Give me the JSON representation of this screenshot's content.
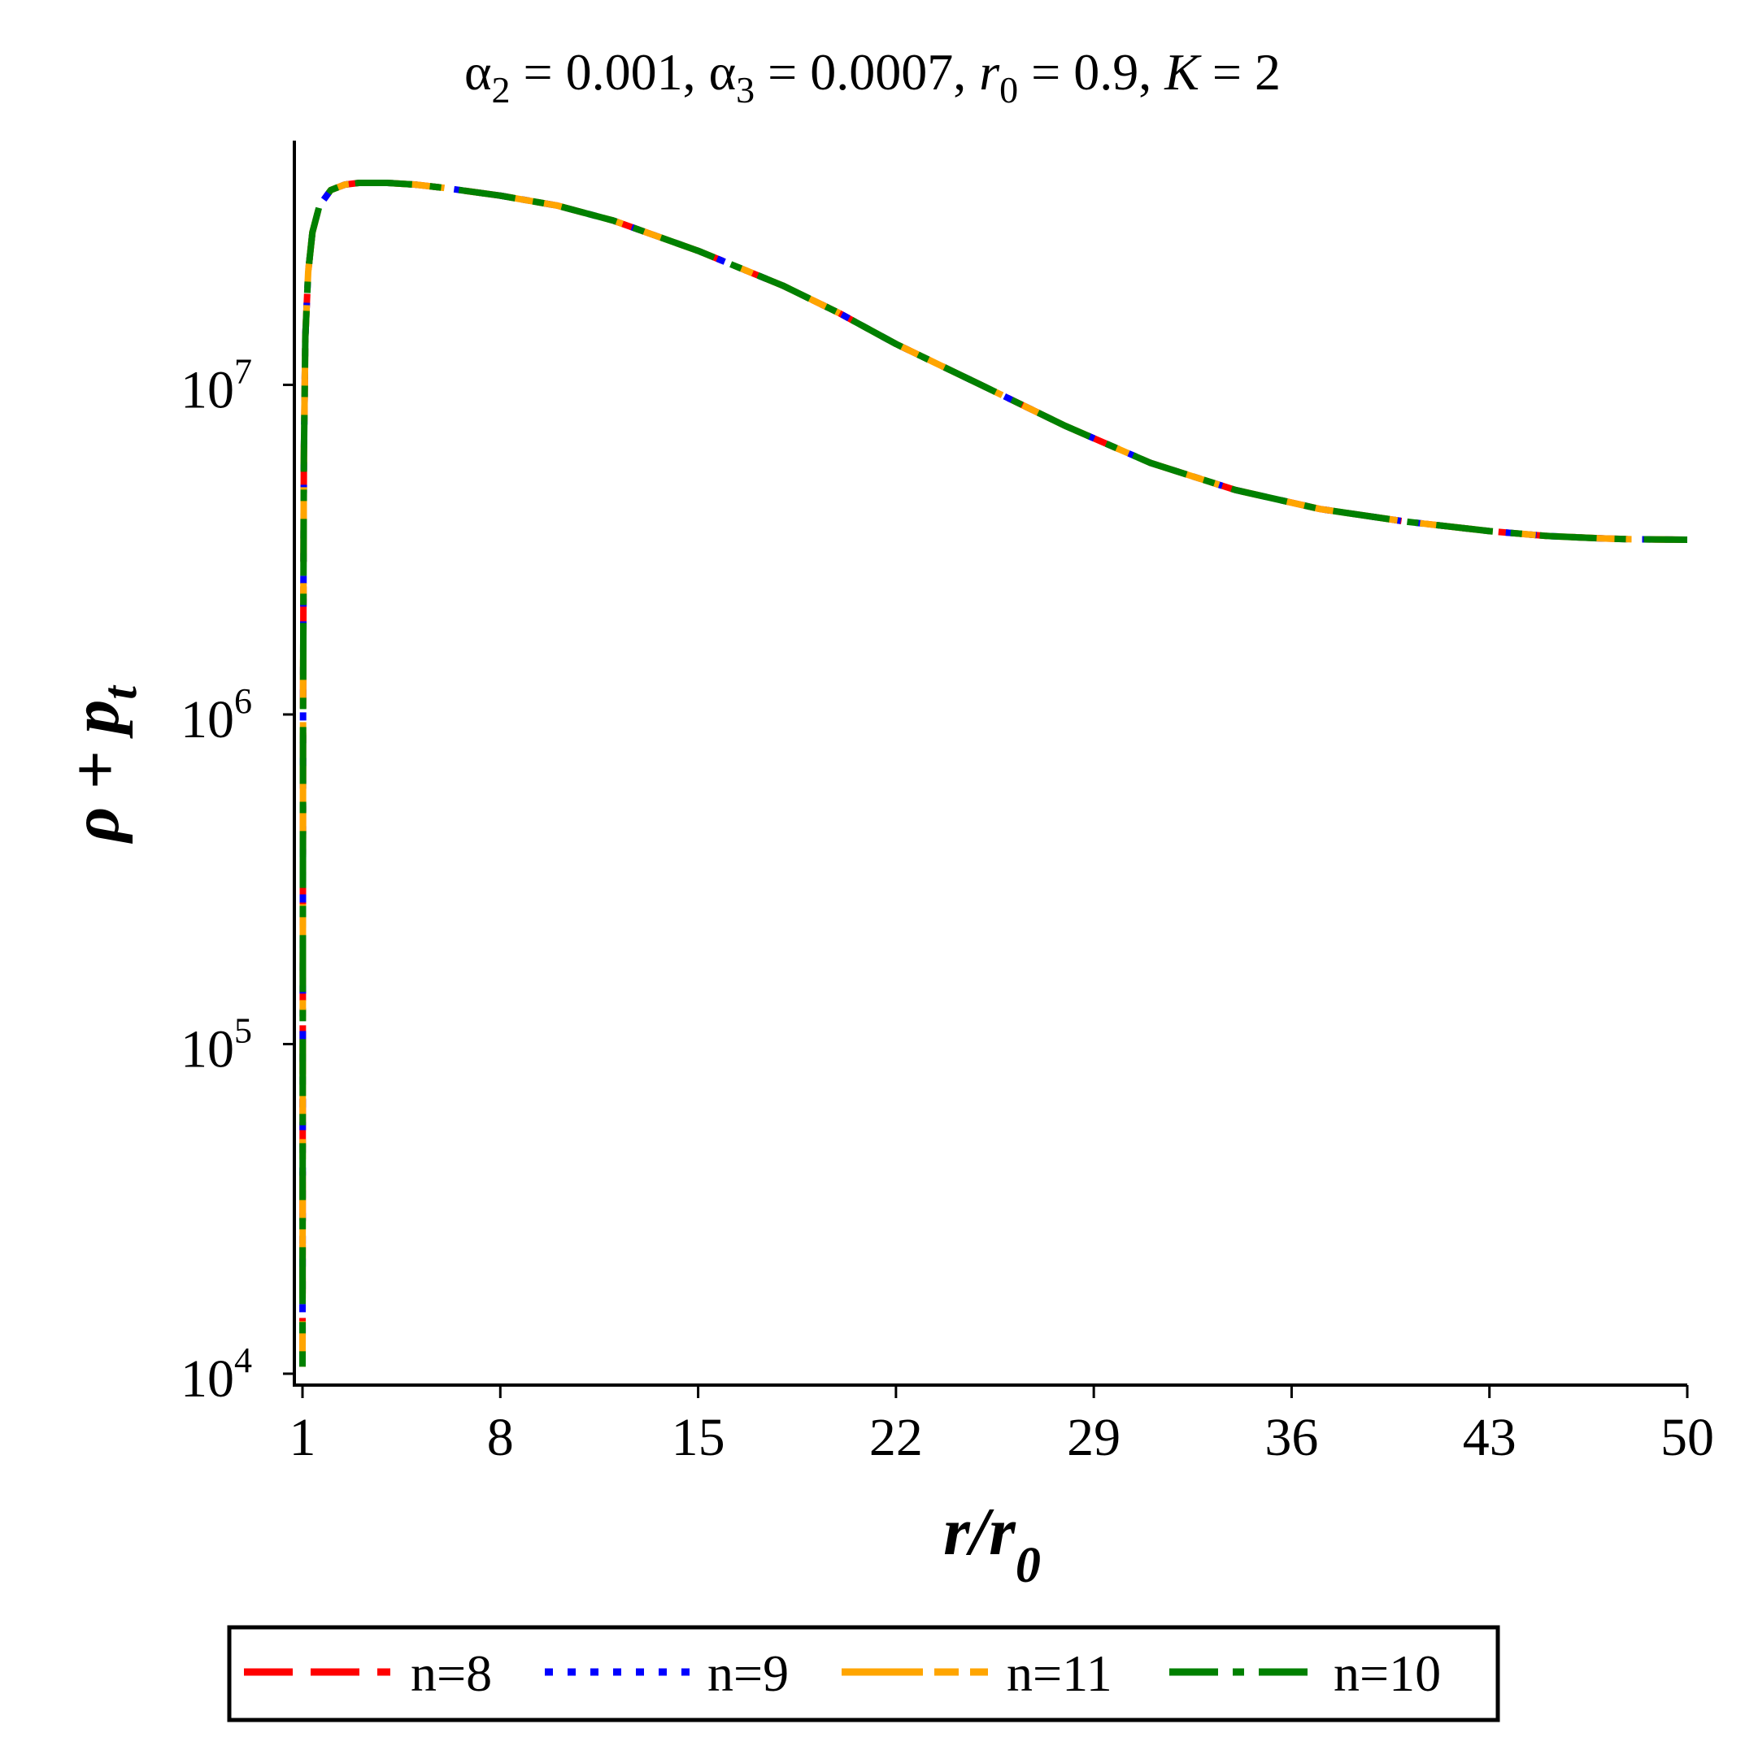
{
  "title": {
    "alpha2_symbol": "α",
    "alpha2_sub": "2",
    "alpha2_value": " = 0.001, ",
    "alpha3_symbol": "α",
    "alpha3_sub": "3",
    "alpha3_value": " = 0.0007, ",
    "r0_symbol": "r",
    "r0_sub": "0",
    "r0_value": " = 0.9, ",
    "k_symbol": "K",
    "k_value": " = 2"
  },
  "y_axis_label": {
    "main": "ρ + p",
    "sub": "t"
  },
  "x_axis_label": {
    "main": "r/r",
    "sub": "0"
  },
  "y_tick_labels": [
    {
      "base": "10",
      "exp": "4"
    },
    {
      "base": "10",
      "exp": "5"
    },
    {
      "base": "10",
      "exp": "6"
    },
    {
      "base": "10",
      "exp": "7"
    }
  ],
  "x_tick_labels": [
    "1",
    "8",
    "15",
    "22",
    "29",
    "36",
    "43",
    "50"
  ],
  "legend": {
    "items": [
      {
        "label": "n=8",
        "color": "#ff0000",
        "style": "dash"
      },
      {
        "label": "n=9",
        "color": "#0000ff",
        "style": "dot"
      },
      {
        "label": "n=11",
        "color": "#ffa500",
        "style": "long-dash"
      },
      {
        "label": "n=10",
        "color": "#008000",
        "style": "dash-dot"
      }
    ]
  },
  "chart_data": {
    "type": "line",
    "y_scale": "log",
    "xlim": [
      1,
      50
    ],
    "ylim": [
      10000,
      50000000
    ],
    "x_ticks": [
      1,
      8,
      15,
      22,
      29,
      36,
      43,
      50
    ],
    "y_ticks": [
      10000,
      100000,
      1000000,
      10000000
    ],
    "grid": false,
    "legend_position": "bottom",
    "series": [
      {
        "name": "n=8",
        "color": "#ff0000",
        "x": [
          1.0,
          1.02,
          1.05,
          1.1,
          1.2,
          1.35,
          1.6,
          2.0,
          2.5,
          3.0,
          4.0,
          5.0,
          6.0,
          8.0,
          10.0,
          12.0,
          15.0,
          18.0,
          20.0,
          22.0,
          25.0,
          28.0,
          31.0,
          34.0,
          37.0,
          40.0,
          43.0,
          45.0,
          47.0,
          48.0,
          50.0
        ],
        "y": [
          10500,
          1000000,
          6000000,
          14000000,
          22000000,
          29000000,
          35000000,
          39000000,
          40500000,
          41000000,
          41000000,
          40500000,
          39600000,
          37500000,
          35000000,
          31500000,
          25500000,
          20000000,
          16500000,
          13300000,
          10000000,
          7500000,
          5800000,
          4800000,
          4200000,
          3850000,
          3600000,
          3480000,
          3420000,
          3400000,
          3390000
        ]
      },
      {
        "name": "n=9",
        "color": "#0000ff",
        "x": [
          1.0,
          1.02,
          1.05,
          1.1,
          1.2,
          1.35,
          1.6,
          2.0,
          2.5,
          3.0,
          4.0,
          5.0,
          6.0,
          8.0,
          10.0,
          12.0,
          15.0,
          18.0,
          20.0,
          22.0,
          25.0,
          28.0,
          31.0,
          34.0,
          37.0,
          40.0,
          43.0,
          45.0,
          47.0,
          48.0,
          50.0
        ],
        "y": [
          10500,
          1000000,
          6000000,
          14000000,
          22000000,
          29000000,
          35000000,
          39000000,
          40500000,
          41000000,
          41000000,
          40500000,
          39600000,
          37500000,
          35000000,
          31500000,
          25500000,
          20000000,
          16500000,
          13300000,
          10000000,
          7500000,
          5800000,
          4800000,
          4200000,
          3850000,
          3600000,
          3480000,
          3420000,
          3400000,
          3390000
        ]
      },
      {
        "name": "n=11",
        "color": "#ffa500",
        "x": [
          1.0,
          1.02,
          1.05,
          1.1,
          1.2,
          1.35,
          1.6,
          2.0,
          2.5,
          3.0,
          4.0,
          5.0,
          6.0,
          8.0,
          10.0,
          12.0,
          15.0,
          18.0,
          20.0,
          22.0,
          25.0,
          28.0,
          31.0,
          34.0,
          37.0,
          40.0,
          43.0,
          45.0,
          47.0,
          48.0,
          50.0
        ],
        "y": [
          10500,
          1000000,
          6000000,
          14000000,
          22000000,
          29000000,
          35000000,
          39000000,
          40500000,
          41000000,
          41000000,
          40500000,
          39600000,
          37500000,
          35000000,
          31500000,
          25500000,
          20000000,
          16500000,
          13300000,
          10000000,
          7500000,
          5800000,
          4800000,
          4200000,
          3850000,
          3600000,
          3480000,
          3420000,
          3400000,
          3390000
        ]
      },
      {
        "name": "n=10",
        "color": "#008000",
        "x": [
          1.0,
          1.02,
          1.05,
          1.1,
          1.2,
          1.35,
          1.6,
          2.0,
          2.5,
          3.0,
          4.0,
          5.0,
          6.0,
          8.0,
          10.0,
          12.0,
          15.0,
          18.0,
          20.0,
          22.0,
          25.0,
          28.0,
          31.0,
          34.0,
          37.0,
          40.0,
          43.0,
          45.0,
          47.0,
          48.0,
          50.0
        ],
        "y": [
          10500,
          1000000,
          6000000,
          14000000,
          22000000,
          29000000,
          35000000,
          39000000,
          40500000,
          41000000,
          41000000,
          40500000,
          39600000,
          37500000,
          35000000,
          31500000,
          25500000,
          20000000,
          16500000,
          13300000,
          10000000,
          7500000,
          5800000,
          4800000,
          4200000,
          3850000,
          3600000,
          3480000,
          3420000,
          3400000,
          3390000
        ]
      }
    ]
  }
}
